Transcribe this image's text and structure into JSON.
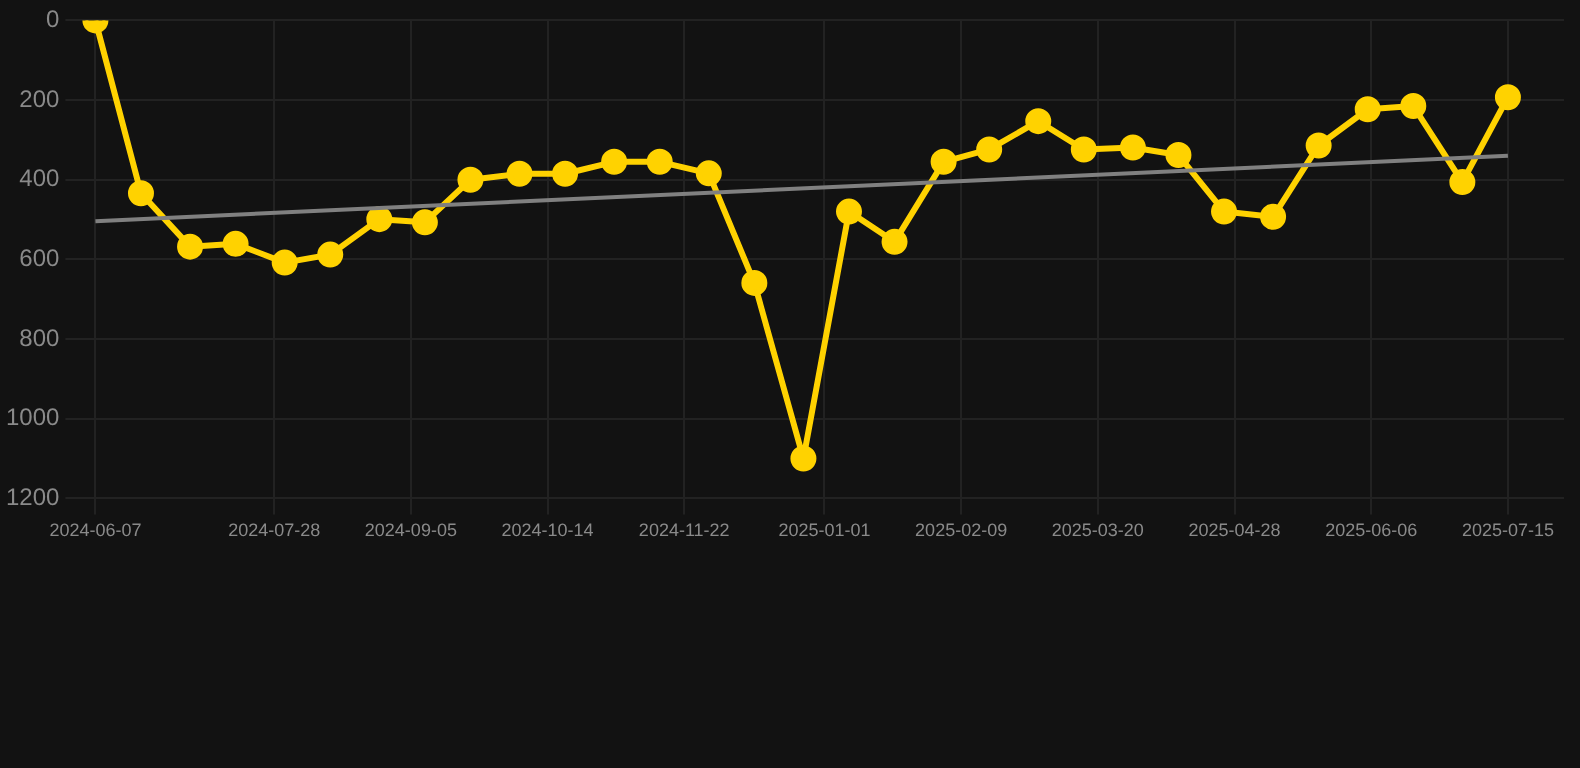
{
  "chart_data": {
    "type": "line",
    "x": [
      "2024-06-07",
      "2024-06-20",
      "2024-07-04",
      "2024-07-17",
      "2024-07-31",
      "2024-08-13",
      "2024-08-27",
      "2024-09-09",
      "2024-09-22",
      "2024-10-06",
      "2024-10-19",
      "2024-11-02",
      "2024-11-15",
      "2024-11-29",
      "2024-12-12",
      "2024-12-26",
      "2025-01-08",
      "2025-01-21",
      "2025-02-04",
      "2025-02-17",
      "2025-03-03",
      "2025-03-16",
      "2025-03-30",
      "2025-04-12",
      "2025-04-25",
      "2025-05-09",
      "2025-05-22",
      "2025-06-05",
      "2025-06-18",
      "2025-07-02",
      "2025-07-15"
    ],
    "series": [
      {
        "color": "#ffd200",
        "values": [
          0,
          434,
          568,
          561,
          608,
          588,
          499,
          507,
          400,
          385,
          385,
          355,
          355,
          384,
          659,
          1100,
          480,
          556,
          355,
          324,
          253,
          324,
          319,
          338,
          480,
          493,
          314,
          223,
          215,
          406,
          193
        ]
      },
      {
        "type": "line",
        "color": "#808080",
        "x": [
          "2024-06-07",
          "2025-07-15"
        ],
        "values": [
          504,
          340
        ],
        "marker": "none"
      }
    ],
    "xlim": [
      "2024-06-03",
      "2025-07-31"
    ],
    "xticks": [
      "2024-06-07",
      "2024-07-28",
      "2024-09-05",
      "2024-10-14",
      "2024-11-22",
      "2025-01-01",
      "2025-02-09",
      "2025-03-20",
      "2025-04-28",
      "2025-06-06",
      "2025-07-15"
    ],
    "ylim": [
      1200,
      0
    ],
    "yticks": [
      0,
      200,
      400,
      600,
      800,
      1000,
      1200
    ],
    "grid": true,
    "legend": false,
    "marker": "circle",
    "line_style": "solid"
  }
}
